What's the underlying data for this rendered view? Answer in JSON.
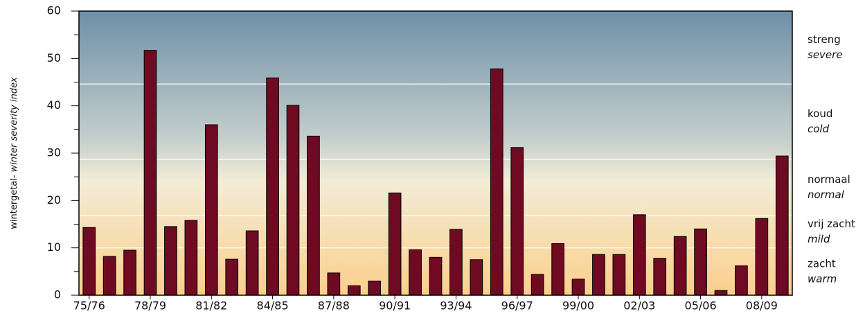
{
  "chart_data": {
    "type": "bar",
    "y_label": {
      "main": "wintergetal-",
      "italic": "winter severity index"
    },
    "categories": [
      "75/76",
      null,
      null,
      "78/79",
      null,
      null,
      "81/82",
      null,
      null,
      "84/85",
      null,
      null,
      "87/88",
      null,
      null,
      "90/91",
      null,
      null,
      "93/94",
      null,
      null,
      "96/97",
      null,
      null,
      "99/00",
      null,
      null,
      "02/03",
      null,
      null,
      "05/06",
      null,
      null,
      "08/09",
      null
    ],
    "values": [
      14.3,
      8.2,
      9.5,
      51.7,
      14.5,
      15.8,
      36,
      7.6,
      13.6,
      45.9,
      40.1,
      33.6,
      4.7,
      2,
      3,
      21.6,
      9.6,
      8,
      13.9,
      7.5,
      47.8,
      31.2,
      4.4,
      10.9,
      3.4,
      8.6,
      8.6,
      17,
      7.8,
      12.4,
      14,
      1,
      6.2,
      16.2,
      29.4
    ],
    "color": "#6e0a22",
    "ylim": [
      0,
      60
    ],
    "yticks": [
      0,
      10,
      20,
      30,
      40,
      50,
      60
    ],
    "yminorticks": [
      5,
      15,
      25,
      35,
      45,
      55
    ],
    "zones": [
      {
        "name": "zacht",
        "english": "warm",
        "from": 0,
        "to": 10
      },
      {
        "name": "vrij zacht",
        "english": "mild",
        "from": 10,
        "to": 16.8
      },
      {
        "name": "normaal",
        "english": "normal",
        "from": 16.8,
        "to": 28.7
      },
      {
        "name": "koud",
        "english": "cold",
        "from": 28.7,
        "to": 44.6
      },
      {
        "name": "streng",
        "english": "severe",
        "from": 44.6,
        "to": 60
      }
    ]
  }
}
